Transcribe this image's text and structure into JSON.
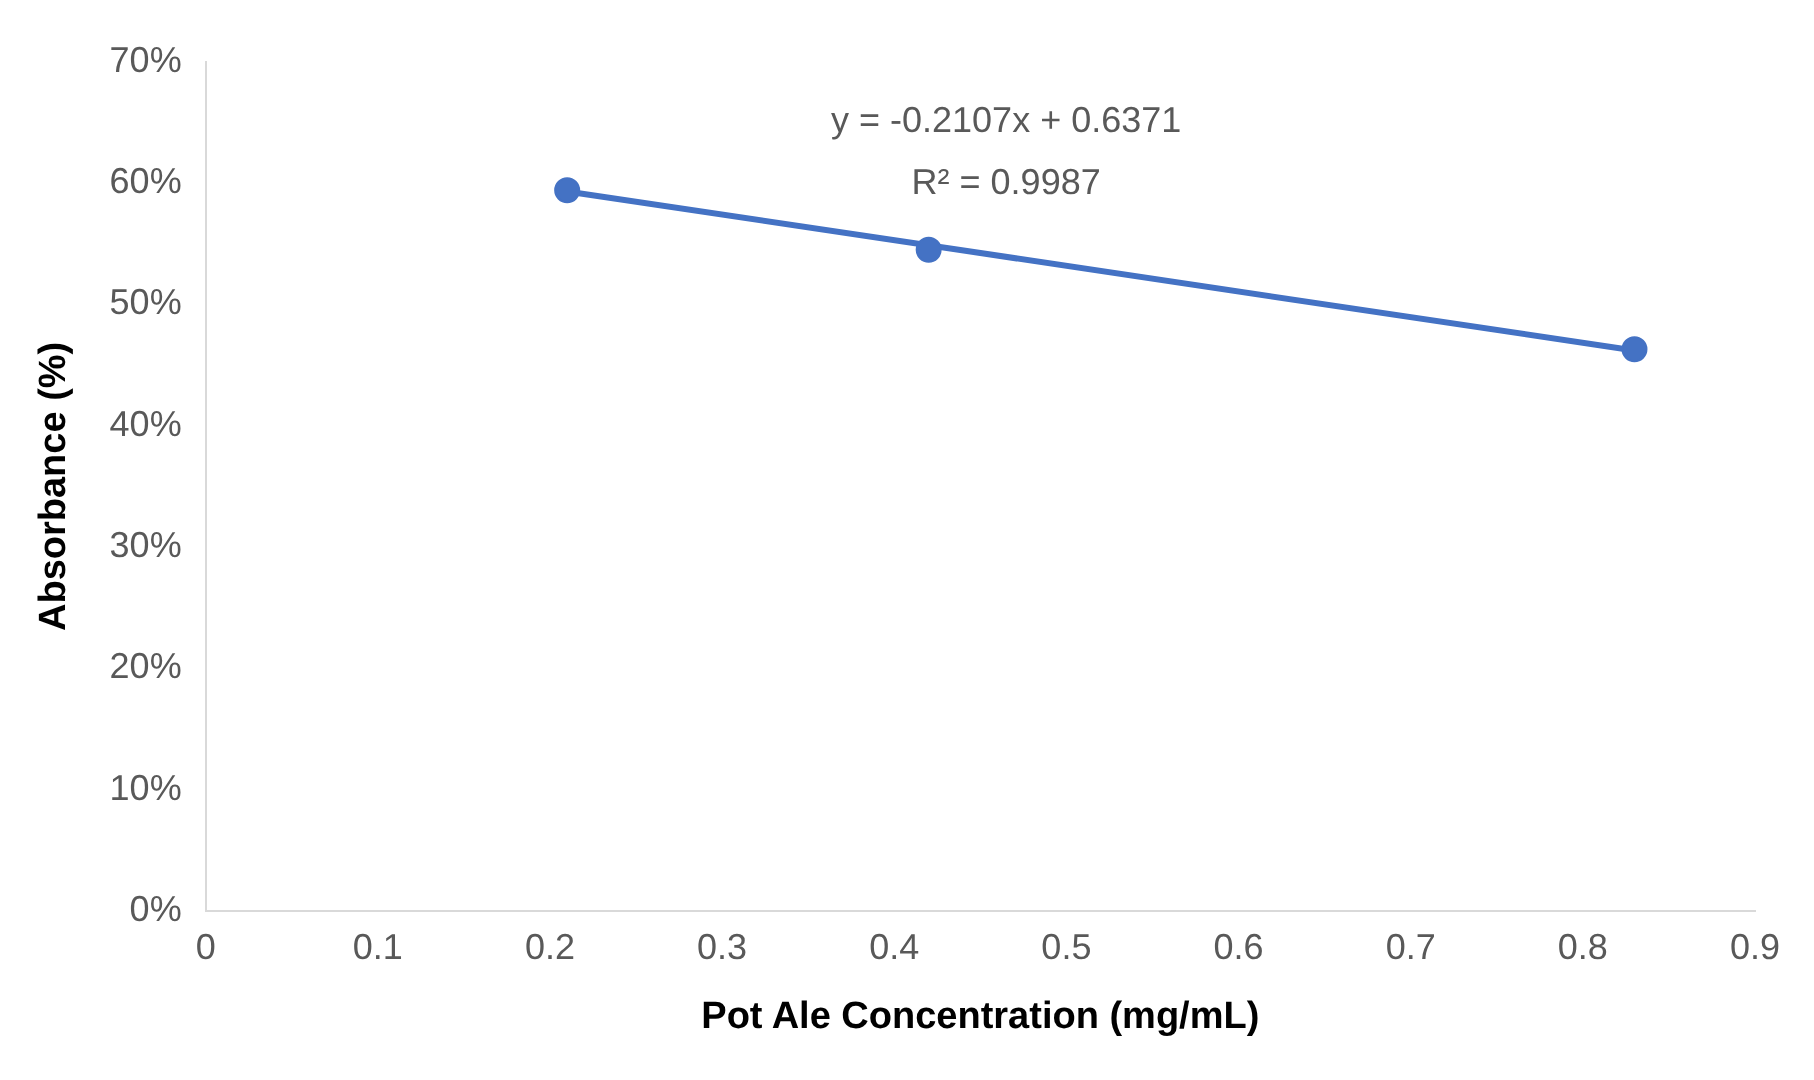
{
  "chart_data": {
    "type": "scatter",
    "xlabel": "Pot Ale Concentration (mg/mL)",
    "ylabel": "Absorbance (%)",
    "annotations": [
      "y = -0.2107x + 0.6371",
      "R² = 0.9987"
    ],
    "series": [
      {
        "type": "scatter",
        "color": "#4472c4",
        "x": [
          0.21,
          0.42,
          0.83
        ],
        "values": [
          0.594,
          0.545,
          0.463
        ]
      },
      {
        "type": "line",
        "color": "#4472c4",
        "x": [
          0.21,
          0.83
        ],
        "values": [
          0.593,
          0.462
        ],
        "marker": "none"
      }
    ],
    "marker": "circle",
    "line_style": "solid",
    "xlim": [
      0,
      0.9
    ],
    "xticks": [
      0,
      0.1,
      0.2,
      0.3,
      0.4,
      0.5,
      0.6,
      0.7,
      0.8,
      0.9
    ],
    "ylim": [
      0,
      0.7
    ],
    "yticks": [
      {
        "value": 0,
        "label": "0%"
      },
      {
        "value": 0.1,
        "label": "10%"
      },
      {
        "value": 0.2,
        "label": "20%"
      },
      {
        "value": 0.3,
        "label": "30%"
      },
      {
        "value": 0.4,
        "label": "40%"
      },
      {
        "value": 0.5,
        "label": "50%"
      },
      {
        "value": 0.6,
        "label": "60%"
      },
      {
        "value": 0.7,
        "label": "70%"
      }
    ],
    "grid": false,
    "legend": false
  }
}
